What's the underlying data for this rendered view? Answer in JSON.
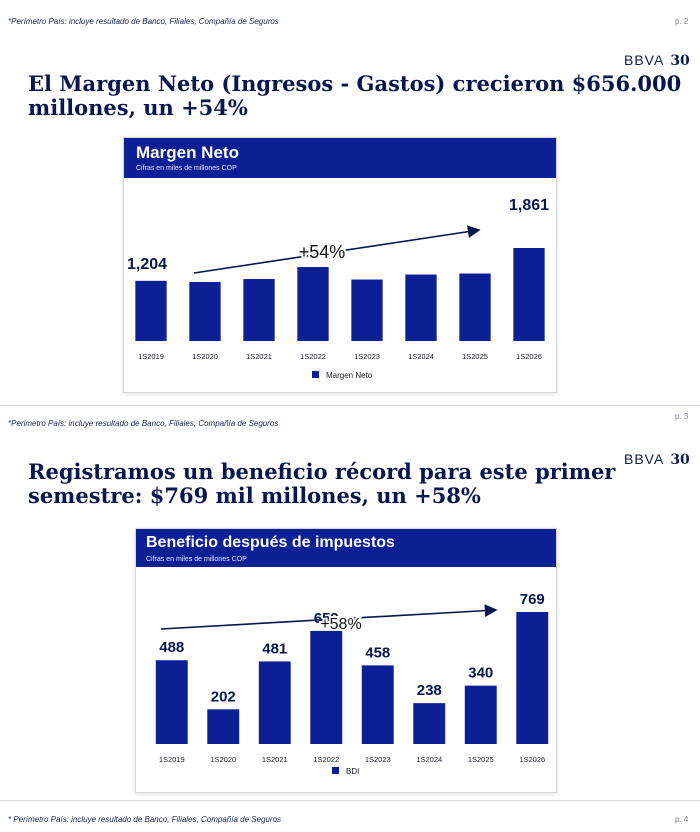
{
  "colors": {
    "brand_navy": "#071650",
    "bar_blue": "#0c1f94",
    "card_header": "#0c1f94"
  },
  "slide2": {
    "footnote": "*Perímetro País: incluye resultado de Banco, Filiales, Compañía de Seguros",
    "page": "p. 2",
    "logo_text": "BBVA",
    "logo_num": "30",
    "headline_line1": "El Margen Neto (Ingresos - Gastos) crecieron $656.000",
    "headline_line2": "millones, un +54%",
    "card_title": "Margen Neto",
    "card_subtitle": "Cifras en miles de millones COP"
  },
  "slide3": {
    "footnote": "*Perimetro País: incluye resultado de Banco, Filiales, Compañía de Seguros",
    "page": "p. 3",
    "logo_text": "BBVA",
    "logo_num": "30",
    "headline_line1": "Registramos un beneficio récord para este primer",
    "headline_line2": "semestre: $769 mil millones, un +58%",
    "card_title": "Beneficio después de impuestos",
    "card_subtitle": "Cifras en miles de millones COP"
  },
  "slide4": {
    "footnote": "* Perímetro País: incluye resultado de Banco, Filiales, Compañía de Seguros",
    "page": "p. 4"
  },
  "chart_data": [
    {
      "type": "bar",
      "title": "Margen Neto",
      "subtitle": "Cifras en miles de millones COP",
      "categories": [
        "1S2019",
        "1S2020",
        "1S2021",
        "1S2022",
        "1S2023",
        "1S2024",
        "1S2025",
        "1S2026"
      ],
      "series": [
        {
          "name": "Margen Neto",
          "values": [
            1204,
            1180,
            1240,
            1480,
            1230,
            1330,
            1350,
            1861
          ]
        }
      ],
      "data_labels": {
        "first": "1,204",
        "last": "1,861"
      },
      "annotation": "+54%",
      "legend_position": "bottom",
      "ylim": [
        0,
        1861
      ],
      "grid": false
    },
    {
      "type": "bar",
      "title": "Beneficio después de impuestos",
      "subtitle": "Cifras en miles de millones COP",
      "categories": [
        "1S2019",
        "1S2020",
        "1S2021",
        "1S2022",
        "1S2023",
        "1S2024",
        "1S2025",
        "1S2026"
      ],
      "series": [
        {
          "name": "BDI",
          "values": [
            488,
            202,
            481,
            659,
            458,
            238,
            340,
            769
          ]
        }
      ],
      "data_labels": [
        "488",
        "202",
        "481",
        "659",
        "458",
        "238",
        "340",
        "769"
      ],
      "annotation": "+58%",
      "legend_position": "bottom",
      "ylim": [
        0,
        769
      ],
      "grid": false
    }
  ]
}
